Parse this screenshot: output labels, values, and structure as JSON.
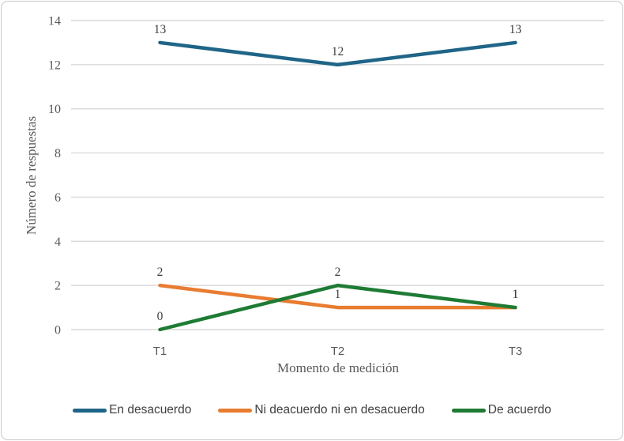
{
  "chart_data": {
    "type": "line",
    "categories": [
      "T1",
      "T2",
      "T3"
    ],
    "series": [
      {
        "name": "En desacuerdo",
        "color": "#1F6587",
        "values": [
          13,
          12,
          13
        ]
      },
      {
        "name": "Ni deacuerdo ni en desacuerdo",
        "color": "#E87C30",
        "values": [
          2,
          1,
          1
        ]
      },
      {
        "name": "De acuerdo",
        "color": "#1E7B34",
        "values": [
          0,
          2,
          1
        ]
      }
    ],
    "title": "",
    "xlabel": "Momento de medición",
    "ylabel": "Número de respuestas",
    "ylim": [
      0,
      14
    ],
    "yticks": [
      0,
      2,
      4,
      6,
      8,
      10,
      12,
      14
    ],
    "data_labels": true,
    "grid": "horizontal",
    "gridline_color": "#D9D9D9",
    "frame_border_color": "#C9C9C9",
    "tick_text_color": "#595959",
    "data_label_color": "#404040",
    "legend_position": "bottom"
  }
}
